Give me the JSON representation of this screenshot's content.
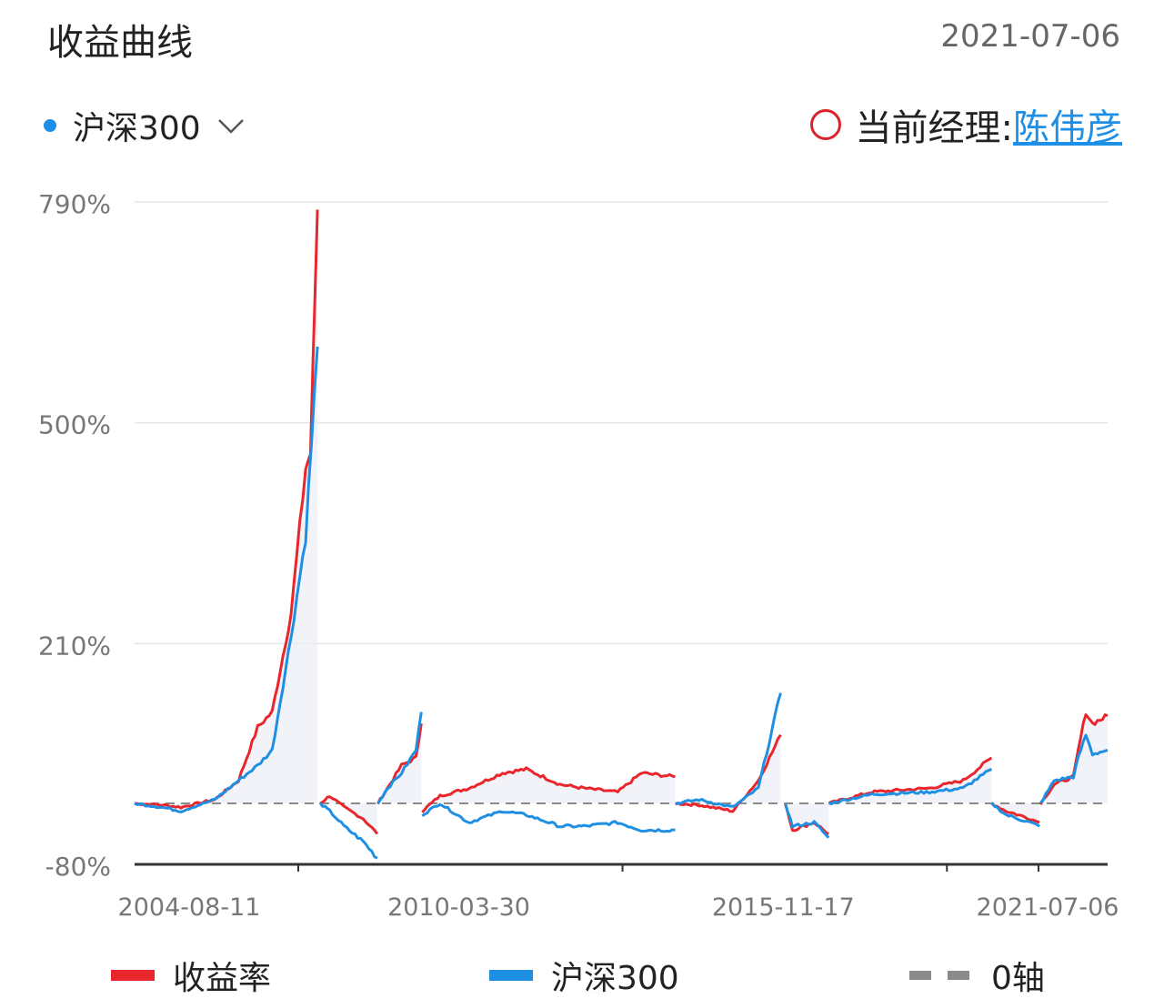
{
  "header": {
    "title": "收益曲线",
    "date": "2021-07-06"
  },
  "selector": {
    "label": "沪深300"
  },
  "manager": {
    "label": "当前经理:",
    "name": "陈伟彦"
  },
  "chart_data": {
    "type": "line",
    "y_unit": "%",
    "yticks": [
      "790%",
      "500%",
      "210%",
      "-80%"
    ],
    "ytick_values": [
      790,
      500,
      210,
      -80
    ],
    "ylim": [
      -80,
      790
    ],
    "xticks": [
      "2004-08-11",
      "2010-03-30",
      "2015-11-17",
      "2021-07-06"
    ],
    "xlim": [
      "2004-08-11",
      "2021-07-06"
    ],
    "grid": true,
    "legend_position": "bottom",
    "zero_line": 0,
    "series": [
      {
        "name": "收益率",
        "color": "#e8262b",
        "segments": [
          [
            [
              "2004-08-11",
              0
            ],
            [
              "2005-02-01",
              -2
            ],
            [
              "2005-06-01",
              -5
            ],
            [
              "2006-01-01",
              5
            ],
            [
              "2006-06-01",
              30
            ],
            [
              "2006-10-01",
              100
            ],
            [
              "2007-01-01",
              120
            ],
            [
              "2007-05-01",
              250
            ],
            [
              "2007-08-01",
              440
            ],
            [
              "2007-09-01",
              460
            ],
            [
              "2007-10-15",
              780
            ]
          ],
          [
            [
              "2007-11-01",
              0
            ],
            [
              "2008-01-01",
              10
            ],
            [
              "2008-04-01",
              -5
            ],
            [
              "2008-08-01",
              -20
            ],
            [
              "2008-10-28",
              -40
            ]
          ],
          [
            [
              "2008-11-01",
              0
            ],
            [
              "2009-01-01",
              20
            ],
            [
              "2009-04-01",
              50
            ],
            [
              "2009-07-01",
              60
            ],
            [
              "2009-08-04",
              105
            ]
          ],
          [
            [
              "2009-08-10",
              -10
            ],
            [
              "2009-12-01",
              10
            ],
            [
              "2010-06-01",
              20
            ],
            [
              "2011-01-01",
              40
            ],
            [
              "2011-06-01",
              45
            ],
            [
              "2012-01-01",
              25
            ],
            [
              "2012-06-01",
              20
            ],
            [
              "2013-01-01",
              15
            ],
            [
              "2013-06-01",
              40
            ],
            [
              "2013-12-31",
              35
            ]
          ],
          [
            [
              "2014-01-02",
              0
            ],
            [
              "2014-06-01",
              -2
            ],
            [
              "2015-01-01",
              -10
            ],
            [
              "2015-06-12",
              30
            ],
            [
              "2015-11-01",
              90
            ]
          ],
          [
            [
              "2015-12-01",
              0
            ],
            [
              "2016-01-15",
              -35
            ],
            [
              "2016-06-01",
              -25
            ],
            [
              "2016-08-31",
              -40
            ]
          ],
          [
            [
              "2016-09-01",
              0
            ],
            [
              "2017-06-01",
              15
            ],
            [
              "2018-06-01",
              20
            ],
            [
              "2019-01-01",
              30
            ],
            [
              "2019-07-01",
              60
            ]
          ],
          [
            [
              "2019-07-02",
              0
            ],
            [
              "2019-10-01",
              -10
            ],
            [
              "2020-03-01",
              -20
            ],
            [
              "2020-04-30",
              -25
            ]
          ],
          [
            [
              "2020-05-06",
              0
            ],
            [
              "2020-08-01",
              25
            ],
            [
              "2020-12-01",
              35
            ],
            [
              "2021-01-01",
              70
            ],
            [
              "2021-02-18",
              120
            ],
            [
              "2021-04-01",
              105
            ],
            [
              "2021-07-06",
              115
            ]
          ]
        ]
      },
      {
        "name": "沪深300",
        "color": "#1f8fe3",
        "segments": [
          [
            [
              "2004-08-11",
              0
            ],
            [
              "2005-02-01",
              -5
            ],
            [
              "2005-06-01",
              -10
            ],
            [
              "2006-01-01",
              5
            ],
            [
              "2006-06-01",
              30
            ],
            [
              "2006-10-01",
              50
            ],
            [
              "2007-01-01",
              70
            ],
            [
              "2007-05-01",
              220
            ],
            [
              "2007-08-01",
              350
            ],
            [
              "2007-10-15",
              600
            ]
          ],
          [
            [
              "2007-11-01",
              0
            ],
            [
              "2008-01-01",
              -10
            ],
            [
              "2008-04-01",
              -30
            ],
            [
              "2008-08-01",
              -50
            ],
            [
              "2008-10-28",
              -72
            ]
          ],
          [
            [
              "2008-11-01",
              0
            ],
            [
              "2009-01-01",
              20
            ],
            [
              "2009-04-01",
              40
            ],
            [
              "2009-07-01",
              70
            ],
            [
              "2009-08-04",
              120
            ]
          ],
          [
            [
              "2009-08-10",
              -15
            ],
            [
              "2009-12-01",
              0
            ],
            [
              "2010-06-01",
              -25
            ],
            [
              "2011-01-01",
              -10
            ],
            [
              "2011-06-01",
              -15
            ],
            [
              "2012-01-01",
              -30
            ],
            [
              "2012-06-01",
              -30
            ],
            [
              "2013-01-01",
              -25
            ],
            [
              "2013-06-01",
              -35
            ],
            [
              "2013-12-31",
              -35
            ]
          ],
          [
            [
              "2014-01-02",
              0
            ],
            [
              "2014-06-01",
              5
            ],
            [
              "2015-01-01",
              -5
            ],
            [
              "2015-06-12",
              20
            ],
            [
              "2015-11-01",
              145
            ]
          ],
          [
            [
              "2015-12-01",
              0
            ],
            [
              "2016-01-15",
              -30
            ],
            [
              "2016-06-01",
              -25
            ],
            [
              "2016-08-31",
              -45
            ]
          ],
          [
            [
              "2016-09-01",
              0
            ],
            [
              "2017-06-01",
              12
            ],
            [
              "2018-06-01",
              15
            ],
            [
              "2019-01-01",
              20
            ],
            [
              "2019-07-01",
              45
            ]
          ],
          [
            [
              "2019-07-02",
              0
            ],
            [
              "2019-10-01",
              -15
            ],
            [
              "2020-03-01",
              -25
            ],
            [
              "2020-04-30",
              -30
            ]
          ],
          [
            [
              "2020-05-06",
              0
            ],
            [
              "2020-08-01",
              30
            ],
            [
              "2020-12-01",
              35
            ],
            [
              "2021-01-01",
              60
            ],
            [
              "2021-02-18",
              90
            ],
            [
              "2021-04-01",
              65
            ],
            [
              "2021-07-06",
              70
            ]
          ]
        ]
      }
    ]
  },
  "legend": [
    {
      "label": "收益率",
      "color": "#e8262b"
    },
    {
      "label": "沪深300",
      "color": "#1f8fe3"
    },
    {
      "label": "0轴",
      "color": "#8a8a8a"
    }
  ]
}
